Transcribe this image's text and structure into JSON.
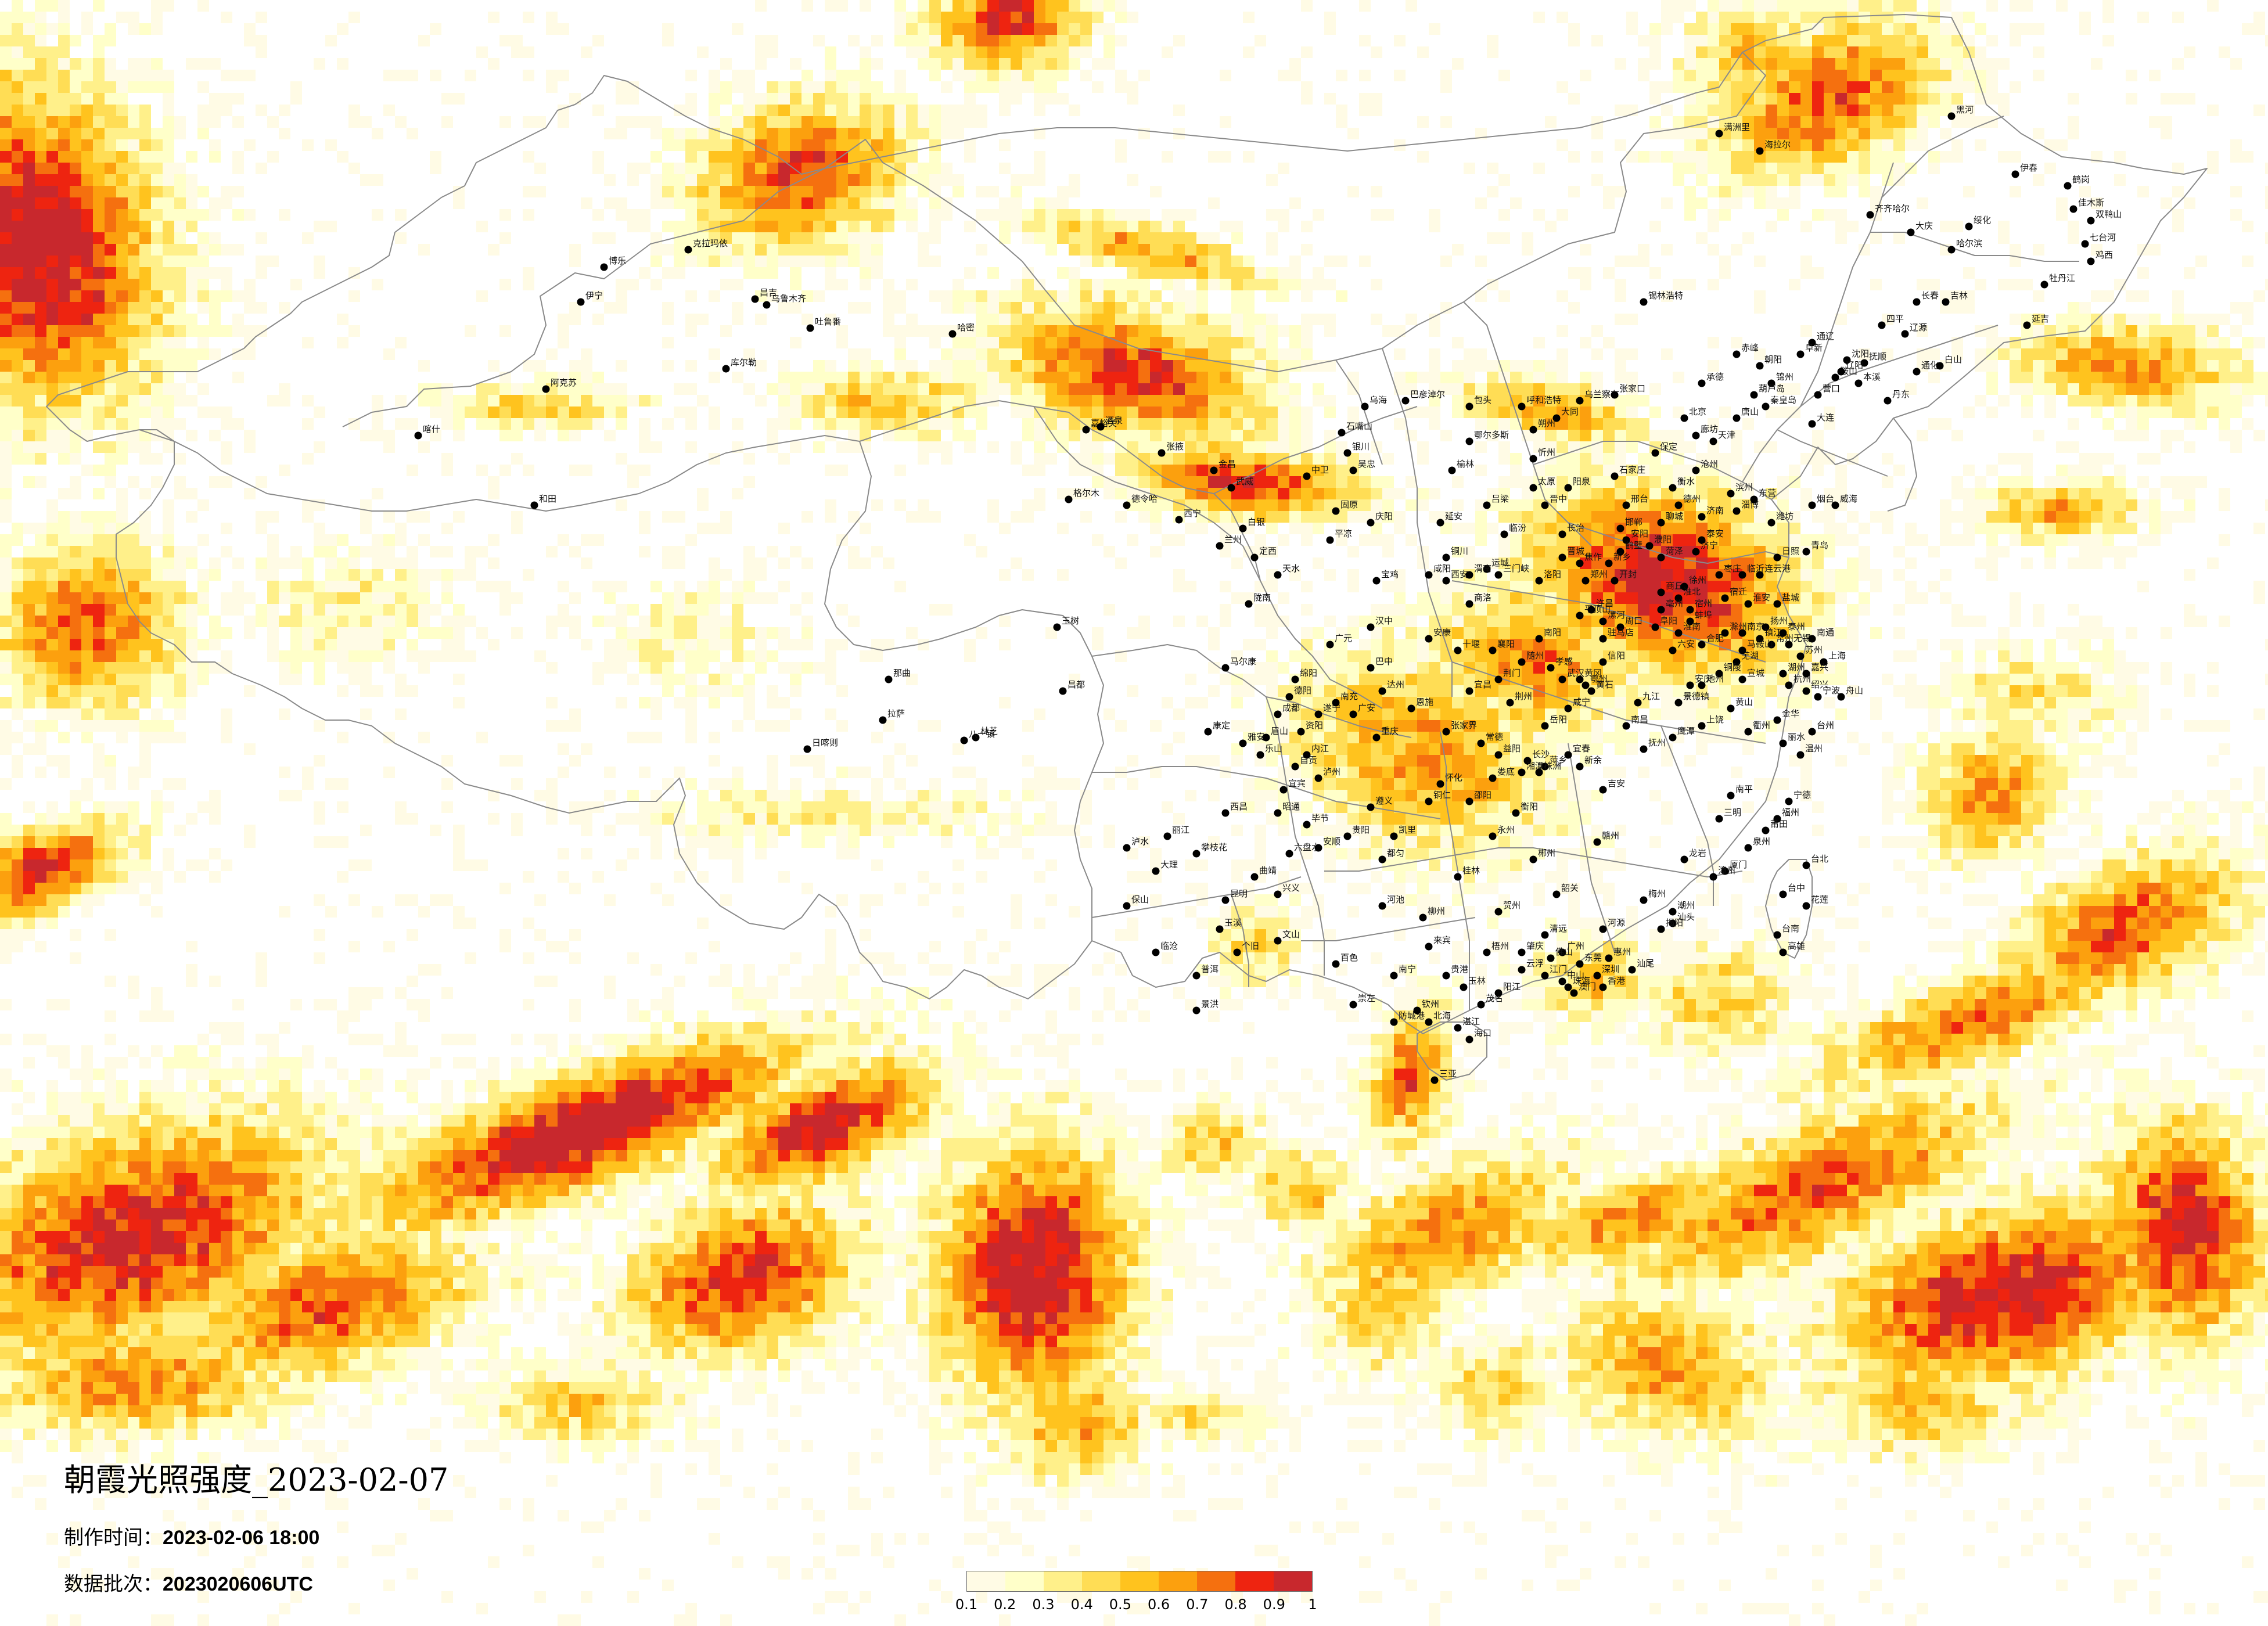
{
  "header": {
    "title": "朝霞光照强度_2023-02-07",
    "made_time_label": "制作时间：",
    "made_time_value": "2023-02-06 18:00",
    "batch_label": "数据批次：",
    "batch_value": "2023020606UTC"
  },
  "legend": {
    "colors": [
      "#fffbe5",
      "#ffffc9",
      "#fff08a",
      "#ffdd55",
      "#ffc31e",
      "#fca00e",
      "#f5700f",
      "#ee2410",
      "#c8282d"
    ],
    "ticks": [
      "0.1",
      "0.2",
      "0.3",
      "0.4",
      "0.5",
      "0.6",
      "0.7",
      "0.8",
      "0.9",
      "1"
    ]
  },
  "map": {
    "type": "heatmap",
    "variable": "朝霞光照强度",
    "value_range": [
      0.1,
      1
    ],
    "boundary_color": "#8a8a8a",
    "city_marker_color": "#000000",
    "cities": [
      "克拉玛依",
      "乌鲁木齐",
      "昌吉",
      "吐鲁番",
      "哈密",
      "伊宁",
      "博乐",
      "阿克苏",
      "库尔勒",
      "喀什",
      "和田",
      "嘉峪关",
      "酒泉",
      "张掖",
      "金昌",
      "武威",
      "西宁",
      "格尔木",
      "德令哈",
      "玉树",
      "拉萨",
      "日喀则",
      "林芝",
      "八一镇",
      "那曲",
      "昌都",
      "银川",
      "石嘴山",
      "中卫",
      "吴忠",
      "固原",
      "兰州",
      "天水",
      "平凉",
      "庆阳",
      "定西",
      "陇南",
      "白银",
      "呼和浩特",
      "包头",
      "鄂尔多斯",
      "乌海",
      "巴彦淖尔",
      "乌兰察布",
      "锡林浩特",
      "赤峰",
      "通辽",
      "海拉尔",
      "满洲里",
      "齐齐哈尔",
      "大庆",
      "哈尔滨",
      "绥化",
      "佳木斯",
      "鹤岗",
      "双鸭山",
      "七台河",
      "鸡西",
      "牡丹江",
      "伊春",
      "黑河",
      "长春",
      "吉林",
      "四平",
      "辽源",
      "通化",
      "白山",
      "延吉",
      "沈阳",
      "大连",
      "鞍山",
      "抚顺",
      "本溪",
      "丹东",
      "锦州",
      "营口",
      "阜新",
      "辽阳",
      "朝阳",
      "葫芦岛",
      "北京",
      "天津",
      "石家庄",
      "唐山",
      "秦皇岛",
      "邯郸",
      "邢台",
      "保定",
      "张家口",
      "承德",
      "沧州",
      "廊坊",
      "衡水",
      "太原",
      "大同",
      "阳泉",
      "长治",
      "晋城",
      "朔州",
      "晋中",
      "运城",
      "忻州",
      "临汾",
      "吕梁",
      "济南",
      "青岛",
      "淄博",
      "枣庄",
      "东营",
      "烟台",
      "潍坊",
      "济宁",
      "泰安",
      "威海",
      "日照",
      "临沂",
      "德州",
      "聊城",
      "滨州",
      "菏泽",
      "郑州",
      "开封",
      "洛阳",
      "平顶山",
      "安阳",
      "鹤壁",
      "新乡",
      "焦作",
      "濮阳",
      "许昌",
      "漯河",
      "三门峡",
      "南阳",
      "商丘",
      "信阳",
      "周口",
      "驻马店",
      "西安",
      "铜川",
      "宝鸡",
      "咸阳",
      "渭南",
      "延安",
      "汉中",
      "榆林",
      "安康",
      "商洛",
      "南京",
      "无锡",
      "徐州",
      "常州",
      "苏州",
      "南通",
      "连云港",
      "淮安",
      "盐城",
      "扬州",
      "镇江",
      "泰州",
      "宿迁",
      "上海",
      "杭州",
      "宁波",
      "温州",
      "嘉兴",
      "湖州",
      "绍兴",
      "金华",
      "衢州",
      "舟山",
      "台州",
      "丽水",
      "合肥",
      "芜湖",
      "蚌埠",
      "淮南",
      "马鞍山",
      "淮北",
      "铜陵",
      "安庆",
      "黄山",
      "滁州",
      "阜阳",
      "宿州",
      "六安",
      "亳州",
      "池州",
      "宣城",
      "福州",
      "厦门",
      "莆田",
      "三明",
      "泉州",
      "漳州",
      "南平",
      "龙岩",
      "宁德",
      "南昌",
      "景德镇",
      "萍乡",
      "九江",
      "新余",
      "鹰潭",
      "赣州",
      "吉安",
      "宜春",
      "抚州",
      "上饶",
      "武汉",
      "黄石",
      "十堰",
      "宜昌",
      "襄阳",
      "鄂州",
      "荆门",
      "孝感",
      "荆州",
      "黄冈",
      "咸宁",
      "随州",
      "恩施",
      "长沙",
      "株洲",
      "湘潭",
      "衡阳",
      "邵阳",
      "岳阳",
      "常德",
      "张家界",
      "益阳",
      "郴州",
      "永州",
      "怀化",
      "娄底",
      "广州",
      "韶关",
      "深圳",
      "珠海",
      "汕头",
      "佛山",
      "江门",
      "湛江",
      "茂名",
      "肇庆",
      "惠州",
      "梅州",
      "汕尾",
      "河源",
      "阳江",
      "清远",
      "东莞",
      "中山",
      "潮州",
      "揭阳",
      "云浮",
      "南宁",
      "柳州",
      "桂林",
      "梧州",
      "北海",
      "防城港",
      "钦州",
      "贵港",
      "玉林",
      "百色",
      "贺州",
      "河池",
      "来宾",
      "崇左",
      "海口",
      "三亚",
      "重庆",
      "成都",
      "自贡",
      "攀枝花",
      "泸州",
      "德阳",
      "绵阳",
      "广元",
      "遂宁",
      "内江",
      "乐山",
      "南充",
      "眉山",
      "宜宾",
      "广安",
      "达州",
      "雅安",
      "巴中",
      "资阳",
      "马尔康",
      "康定",
      "西昌",
      "贵阳",
      "六盘水",
      "遵义",
      "安顺",
      "铜仁",
      "毕节",
      "凯里",
      "都匀",
      "兴义",
      "昆明",
      "曲靖",
      "玉溪",
      "保山",
      "昭通",
      "丽江",
      "普洱",
      "临沧",
      "大理",
      "个旧",
      "文山",
      "景洪",
      "泸水",
      "台北",
      "台中",
      "台南",
      "高雄",
      "花莲",
      "香港",
      "澳门"
    ]
  }
}
